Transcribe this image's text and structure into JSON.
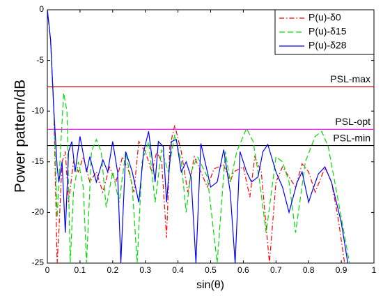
{
  "chart_data": {
    "type": "line",
    "xlabel": "sin(θ)",
    "ylabel": "Power pattern/dB",
    "xlim": [
      0,
      1
    ],
    "ylim": [
      -25,
      0
    ],
    "xticks": [
      0,
      0.1,
      0.2,
      0.3,
      0.4,
      0.5,
      0.6,
      0.7,
      0.8,
      0.9,
      1
    ],
    "yticks": [
      -25,
      -20,
      -15,
      -10,
      -5,
      0
    ],
    "grid": false,
    "legend": "upper right",
    "reference_lines": [
      {
        "label": "PSL-max",
        "value": -7.6,
        "color": "#cc0000"
      },
      {
        "label": "PSL-opt",
        "value": -11.8,
        "color": "#ff00ff"
      },
      {
        "label": "PSL-min",
        "value": -13.4,
        "color": "#000000"
      }
    ],
    "series": [
      {
        "name": "P(u)-δ0",
        "color": "#ff0000",
        "style": "dashdot",
        "x": [
          0,
          0.01,
          0.02,
          0.03,
          0.035,
          0.045,
          0.055,
          0.065,
          0.08,
          0.095,
          0.11,
          0.13,
          0.15,
          0.17,
          0.19,
          0.21,
          0.23,
          0.25,
          0.265,
          0.28,
          0.3,
          0.32,
          0.335,
          0.35,
          0.365,
          0.375,
          0.39,
          0.41,
          0.43,
          0.45,
          0.47,
          0.49,
          0.51,
          0.54,
          0.56,
          0.57,
          0.6,
          0.62,
          0.635,
          0.655,
          0.68,
          0.7,
          0.72,
          0.74,
          0.76,
          0.78,
          0.8,
          0.82,
          0.85,
          0.87,
          0.89,
          0.91
        ],
        "values": [
          0,
          -3,
          -10,
          -25,
          -22,
          -15,
          -14,
          -19,
          -15,
          -16,
          -14.5,
          -17,
          -16,
          -18,
          -15.5,
          -17,
          -14.5,
          -16,
          -18,
          -13,
          -14,
          -16,
          -14,
          -15,
          -22.5,
          -13.5,
          -11.4,
          -14,
          -18,
          -14.5,
          -16,
          -17.5,
          -15.7,
          -15.3,
          -17,
          -16,
          -15.5,
          -18.5,
          -14.5,
          -16,
          -25,
          -17,
          -15.5,
          -16.5,
          -17.5,
          -15.2,
          -16,
          -18,
          -15.6,
          -17,
          -20.5,
          -25
        ]
      },
      {
        "name": "P(u)-δ15",
        "color": "#00dd00",
        "style": "dashed",
        "x": [
          0,
          0.01,
          0.02,
          0.03,
          0.04,
          0.05,
          0.06,
          0.07,
          0.08,
          0.095,
          0.11,
          0.12,
          0.135,
          0.15,
          0.165,
          0.18,
          0.2,
          0.22,
          0.24,
          0.26,
          0.275,
          0.29,
          0.31,
          0.33,
          0.35,
          0.37,
          0.39,
          0.41,
          0.425,
          0.44,
          0.46,
          0.49,
          0.52,
          0.545,
          0.56,
          0.58,
          0.61,
          0.63,
          0.65,
          0.67,
          0.7,
          0.72,
          0.74,
          0.76,
          0.79,
          0.82,
          0.84,
          0.86,
          0.88,
          0.9,
          0.925
        ],
        "values": [
          0,
          -3,
          -10,
          -20.5,
          -14,
          -8.2,
          -10,
          -25,
          -18,
          -15,
          -17.5,
          -25,
          -14,
          -12.8,
          -14,
          -19.5,
          -16,
          -19,
          -14,
          -17.5,
          -25,
          -15,
          -13,
          -19,
          -13.8,
          -16,
          -12.3,
          -15,
          -20,
          -16,
          -14.5,
          -16.5,
          -25,
          -14,
          -17,
          -14,
          -11.7,
          -13,
          -17,
          -22,
          -14.5,
          -15,
          -17,
          -22,
          -15,
          -12.5,
          -12,
          -13.5,
          -17,
          -20.5,
          -25
        ]
      },
      {
        "name": "P(u)-δ28",
        "color": "#0000ff",
        "style": "solid",
        "x": [
          0,
          0.01,
          0.02,
          0.03,
          0.035,
          0.045,
          0.055,
          0.065,
          0.075,
          0.085,
          0.1,
          0.12,
          0.13,
          0.15,
          0.17,
          0.185,
          0.2,
          0.215,
          0.225,
          0.24,
          0.26,
          0.28,
          0.295,
          0.31,
          0.33,
          0.34,
          0.355,
          0.365,
          0.38,
          0.395,
          0.41,
          0.425,
          0.44,
          0.455,
          0.47,
          0.49,
          0.5,
          0.52,
          0.54,
          0.56,
          0.575,
          0.59,
          0.61,
          0.625,
          0.645,
          0.66,
          0.675,
          0.7,
          0.72,
          0.74,
          0.765,
          0.78,
          0.8,
          0.81,
          0.83,
          0.85,
          0.87,
          0.9,
          0.92
        ],
        "values": [
          0,
          -3,
          -10,
          -15.5,
          -17,
          -15,
          -22,
          -14,
          -13,
          -16,
          -12.5,
          -16,
          -14.5,
          -17,
          -14.8,
          -16,
          -13,
          -16,
          -25,
          -14,
          -16,
          -19,
          -14,
          -12,
          -17,
          -13,
          -13.5,
          -19,
          -13,
          -12.8,
          -16,
          -15,
          -16.5,
          -25,
          -13.2,
          -16,
          -17.5,
          -17,
          -13.8,
          -18,
          -25,
          -14,
          -16,
          -17,
          -16.5,
          -14,
          -13.3,
          -16,
          -17.5,
          -20,
          -17,
          -16,
          -19,
          -18,
          -16.2,
          -15.5,
          -17,
          -21,
          -25
        ]
      }
    ]
  }
}
